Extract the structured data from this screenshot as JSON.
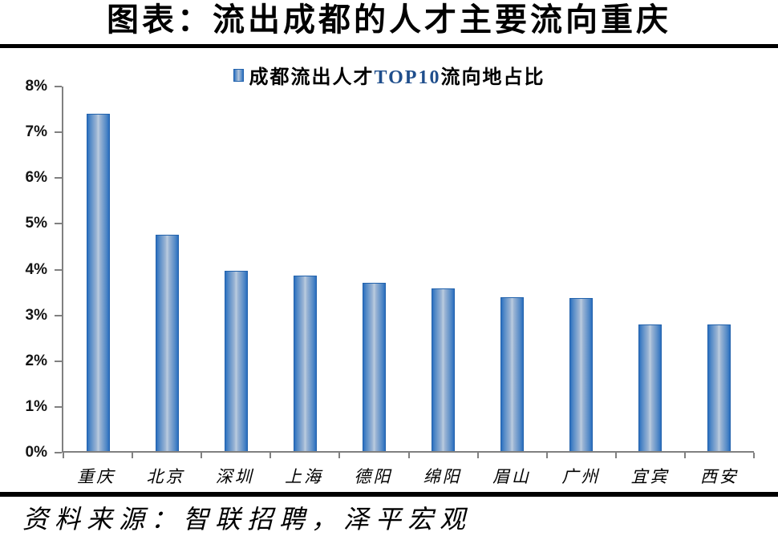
{
  "header": {
    "title": "图表：流出成都的人才主要流向重庆"
  },
  "legend": {
    "prefix": "成都流出人才",
    "highlight": "TOP10",
    "suffix": "流向地占比"
  },
  "footer": {
    "source": "资料来源：智联招聘，泽平宏观"
  },
  "colors": {
    "bar_edge": "#2a6ebf",
    "bar_center": "#bccde0",
    "bar_border": "#2262ac",
    "axis": "#808080",
    "rule": "#000000",
    "legend_highlight_text": "#1f4e8c",
    "text": "#000000"
  },
  "chart_data": {
    "type": "bar",
    "series_name": "成都流出人才TOP10流向地占比",
    "title": "图表：流出成都的人才主要流向重庆",
    "categories": [
      "重庆",
      "北京",
      "深圳",
      "上海",
      "德阳",
      "绵阳",
      "眉山",
      "广州",
      "宜宾",
      "西安"
    ],
    "values": [
      7.4,
      4.75,
      3.95,
      3.85,
      3.7,
      3.57,
      3.37,
      3.35,
      2.77,
      2.77
    ],
    "unit": "%",
    "xlabel": "",
    "ylabel": "",
    "ylim": [
      0,
      8
    ],
    "ytick_step": 1,
    "ytick_labels": [
      "0%",
      "1%",
      "2%",
      "3%",
      "4%",
      "5%",
      "6%",
      "7%",
      "8%"
    ],
    "legend_position": "top-center",
    "grid": false,
    "source": "资料来源：智联招聘，泽平宏观"
  }
}
